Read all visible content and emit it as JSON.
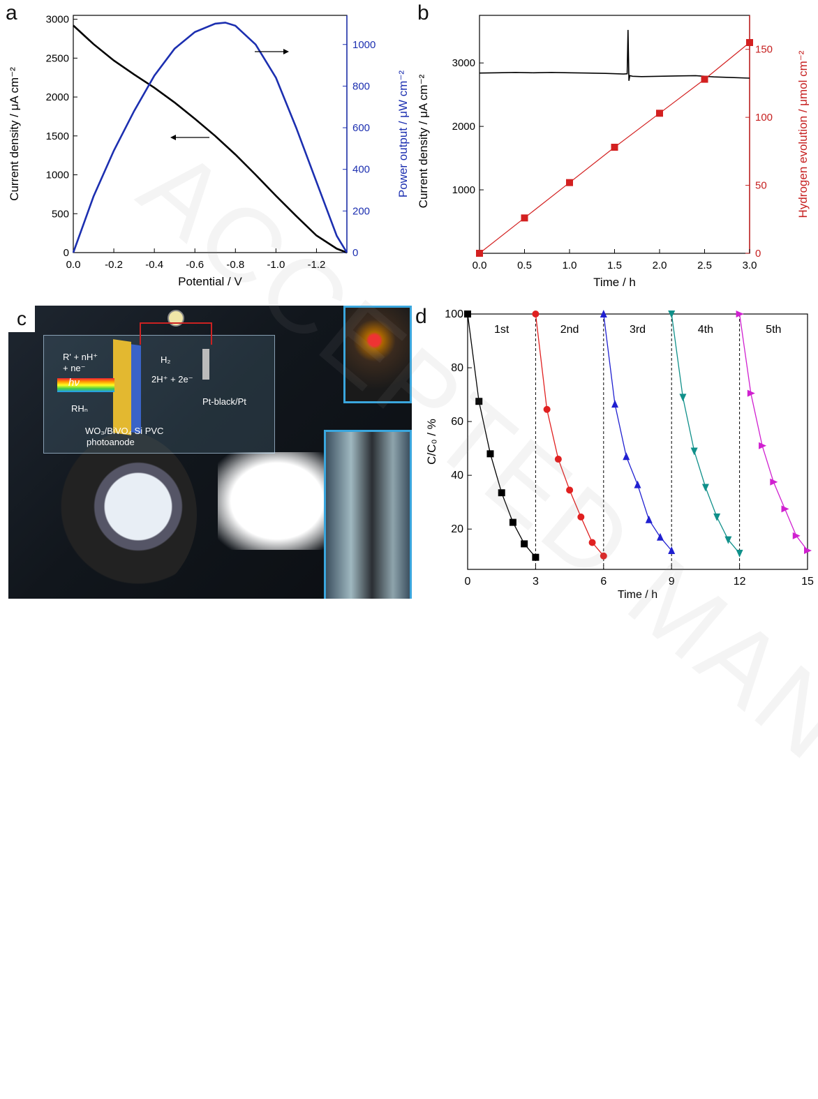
{
  "panel_labels": {
    "a": "a",
    "b": "b",
    "c": "c",
    "d": "d"
  },
  "watermark": "ACCEPTED MANUSCRIPT",
  "photo": {
    "schematic": {
      "reaction_left_1": "R' + nH⁺",
      "reaction_left_2": "+ ne⁻",
      "light": "hν",
      "product": "RHₙ",
      "h2": "H₂",
      "reaction_right": "2H⁺ + 2e⁻",
      "cathode": "Pt-black/Pt",
      "photoanode_1": "WO₃/BiVO₄  Si PVC",
      "photoanode_2": "photoanode"
    },
    "colors": {
      "frame": "#3aa6dd",
      "photoanode": "#e3b830",
      "pv": "#3a63c8"
    }
  },
  "chart_data": [
    {
      "panel": "a",
      "type": "line",
      "xlabel": "Potential / V",
      "ylabel": "Current density / μA cm⁻²",
      "y2label": "Power output / μW cm⁻²",
      "xlim": [
        0,
        -1.35
      ],
      "ylim": [
        0,
        3050
      ],
      "y2lim": [
        0,
        1140
      ],
      "xticks": [
        "0.0",
        "-0.2",
        "-0.4",
        "-0.6",
        "-0.8",
        "-1.0",
        "-1.2"
      ],
      "yticks": [
        "0",
        "500",
        "1000",
        "1500",
        "2000",
        "2500",
        "3000"
      ],
      "y2ticks": [
        "0",
        "200",
        "400",
        "600",
        "800",
        "1000"
      ],
      "series": [
        {
          "axis": "left",
          "color": "#000000",
          "x": [
            0,
            -0.1,
            -0.2,
            -0.3,
            -0.4,
            -0.5,
            -0.6,
            -0.7,
            -0.8,
            -0.9,
            -1.0,
            -1.1,
            -1.2,
            -1.3,
            -1.35
          ],
          "y": [
            2920,
            2680,
            2470,
            2290,
            2120,
            1930,
            1720,
            1500,
            1260,
            1000,
            730,
            470,
            220,
            50,
            0
          ]
        },
        {
          "axis": "right",
          "color": "#1c2fb0",
          "x": [
            0,
            -0.1,
            -0.2,
            -0.3,
            -0.4,
            -0.5,
            -0.6,
            -0.7,
            -0.75,
            -0.8,
            -0.9,
            -1.0,
            -1.1,
            -1.2,
            -1.3,
            -1.35
          ],
          "y": [
            0,
            270,
            490,
            680,
            850,
            980,
            1060,
            1100,
            1105,
            1090,
            1000,
            840,
            600,
            340,
            80,
            0
          ]
        }
      ],
      "arrows": [
        {
          "direction": "left",
          "near": "current"
        },
        {
          "direction": "right",
          "near": "power"
        }
      ]
    },
    {
      "panel": "b",
      "type": "line",
      "xlabel": "Time / h",
      "ylabel": "Current density / μA cm⁻²",
      "y2label": "Hydrogen evolution / μmol cm⁻²",
      "xlim": [
        0,
        3
      ],
      "ylim": [
        0,
        3750
      ],
      "y2lim": [
        0,
        175
      ],
      "xticks": [
        "0.0",
        "0.5",
        "1.0",
        "1.5",
        "2.0",
        "2.5",
        "3.0"
      ],
      "yticks": [
        "1000",
        "2000",
        "3000"
      ],
      "y2ticks": [
        "0",
        "50",
        "100",
        "150"
      ],
      "series": [
        {
          "axis": "left",
          "color": "#000000",
          "x": [
            0,
            0.2,
            0.4,
            0.6,
            0.8,
            1.0,
            1.2,
            1.4,
            1.6,
            1.64,
            1.65,
            1.66,
            1.67,
            1.7,
            1.8,
            2.0,
            2.2,
            2.4,
            2.6,
            2.8,
            3.0
          ],
          "y": [
            2840,
            2845,
            2850,
            2845,
            2850,
            2845,
            2840,
            2835,
            2825,
            2830,
            3520,
            2720,
            2800,
            2790,
            2785,
            2790,
            2795,
            2800,
            2780,
            2770,
            2760
          ]
        },
        {
          "axis": "right",
          "color": "#d32020",
          "marker": "square",
          "x": [
            0,
            0.5,
            1.0,
            1.5,
            2.0,
            2.5,
            3.0
          ],
          "y": [
            0,
            26,
            52,
            78,
            103,
            128,
            155
          ]
        }
      ]
    },
    {
      "panel": "d",
      "type": "line",
      "xlabel": "Time / h",
      "ylabel": "C/C₀ / %",
      "xlim": [
        0,
        15
      ],
      "ylim": [
        5,
        100
      ],
      "xticks": [
        "0",
        "3",
        "6",
        "9",
        "12",
        "15"
      ],
      "yticks": [
        "20",
        "40",
        "60",
        "80",
        "100"
      ],
      "cycle_labels": [
        "1st",
        "2nd",
        "3rd",
        "4th",
        "5th"
      ],
      "dividers_x": [
        3,
        6,
        9,
        12
      ],
      "series": [
        {
          "color": "#000000",
          "marker": "square",
          "x": [
            0,
            0.5,
            1.0,
            1.5,
            2.0,
            2.5,
            3.0
          ],
          "y": [
            100,
            67.5,
            48,
            33.5,
            22.5,
            14.5,
            9.5
          ]
        },
        {
          "color": "#e02020",
          "marker": "circle",
          "x": [
            3,
            3.5,
            4.0,
            4.5,
            5.0,
            5.5,
            6.0
          ],
          "y": [
            100,
            64.5,
            46,
            34.5,
            24.5,
            15,
            10
          ]
        },
        {
          "color": "#2020d0",
          "marker": "triangle-up",
          "x": [
            6,
            6.5,
            7.0,
            7.5,
            8.0,
            8.5,
            9.0
          ],
          "y": [
            100,
            66.5,
            47,
            36.5,
            23.5,
            17,
            12
          ]
        },
        {
          "color": "#10908a",
          "marker": "triangle-down",
          "x": [
            9,
            9.5,
            10.0,
            10.5,
            11.0,
            11.5,
            12.0
          ],
          "y": [
            100,
            69,
            49,
            35.5,
            24.5,
            16,
            11
          ]
        },
        {
          "color": "#d020d0",
          "marker": "triangle-right",
          "x": [
            12,
            12.5,
            13.0,
            13.5,
            14.0,
            14.5,
            15.0
          ],
          "y": [
            100,
            70.5,
            51,
            37.5,
            27.5,
            17.5,
            12
          ]
        }
      ]
    }
  ]
}
